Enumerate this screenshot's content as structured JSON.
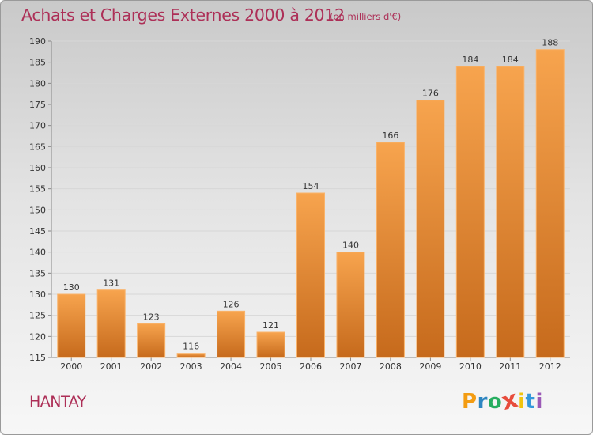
{
  "header": {
    "title": "Achats et Charges Externes 2000 à 2012",
    "subtitle": "(en milliers d'€)"
  },
  "footer": {
    "commune": "HANTAY",
    "logo_letters": [
      "P",
      "r",
      "o",
      "x",
      "i",
      "t",
      "i"
    ],
    "logo_text": "Proxiti"
  },
  "colors": {
    "title": "#ad2f57",
    "bar_top": "#f7a44e",
    "bar_bottom": "#c66a1c",
    "bar_stroke": "#f9b36a",
    "gridline": "#d7d7d7",
    "logo": [
      "#f39c12",
      "#2e86c1",
      "#27ae60",
      "#e74c3c",
      "#f1c40f",
      "#3498db",
      "#9b59b6"
    ]
  },
  "chart_data": {
    "type": "bar",
    "title": "Achats et Charges Externes 2000 à 2012",
    "subtitle": "(en milliers d'€)",
    "categories": [
      "2000",
      "2001",
      "2002",
      "2003",
      "2004",
      "2005",
      "2006",
      "2007",
      "2008",
      "2009",
      "2010",
      "2011",
      "2012"
    ],
    "values": [
      130,
      131,
      123,
      116,
      126,
      121,
      154,
      140,
      166,
      176,
      184,
      184,
      188
    ],
    "ylim": [
      115,
      190
    ],
    "yticks": [
      115,
      120,
      125,
      130,
      135,
      140,
      145,
      150,
      155,
      160,
      165,
      170,
      175,
      180,
      185,
      190
    ],
    "grid": true,
    "data_labels": true
  }
}
